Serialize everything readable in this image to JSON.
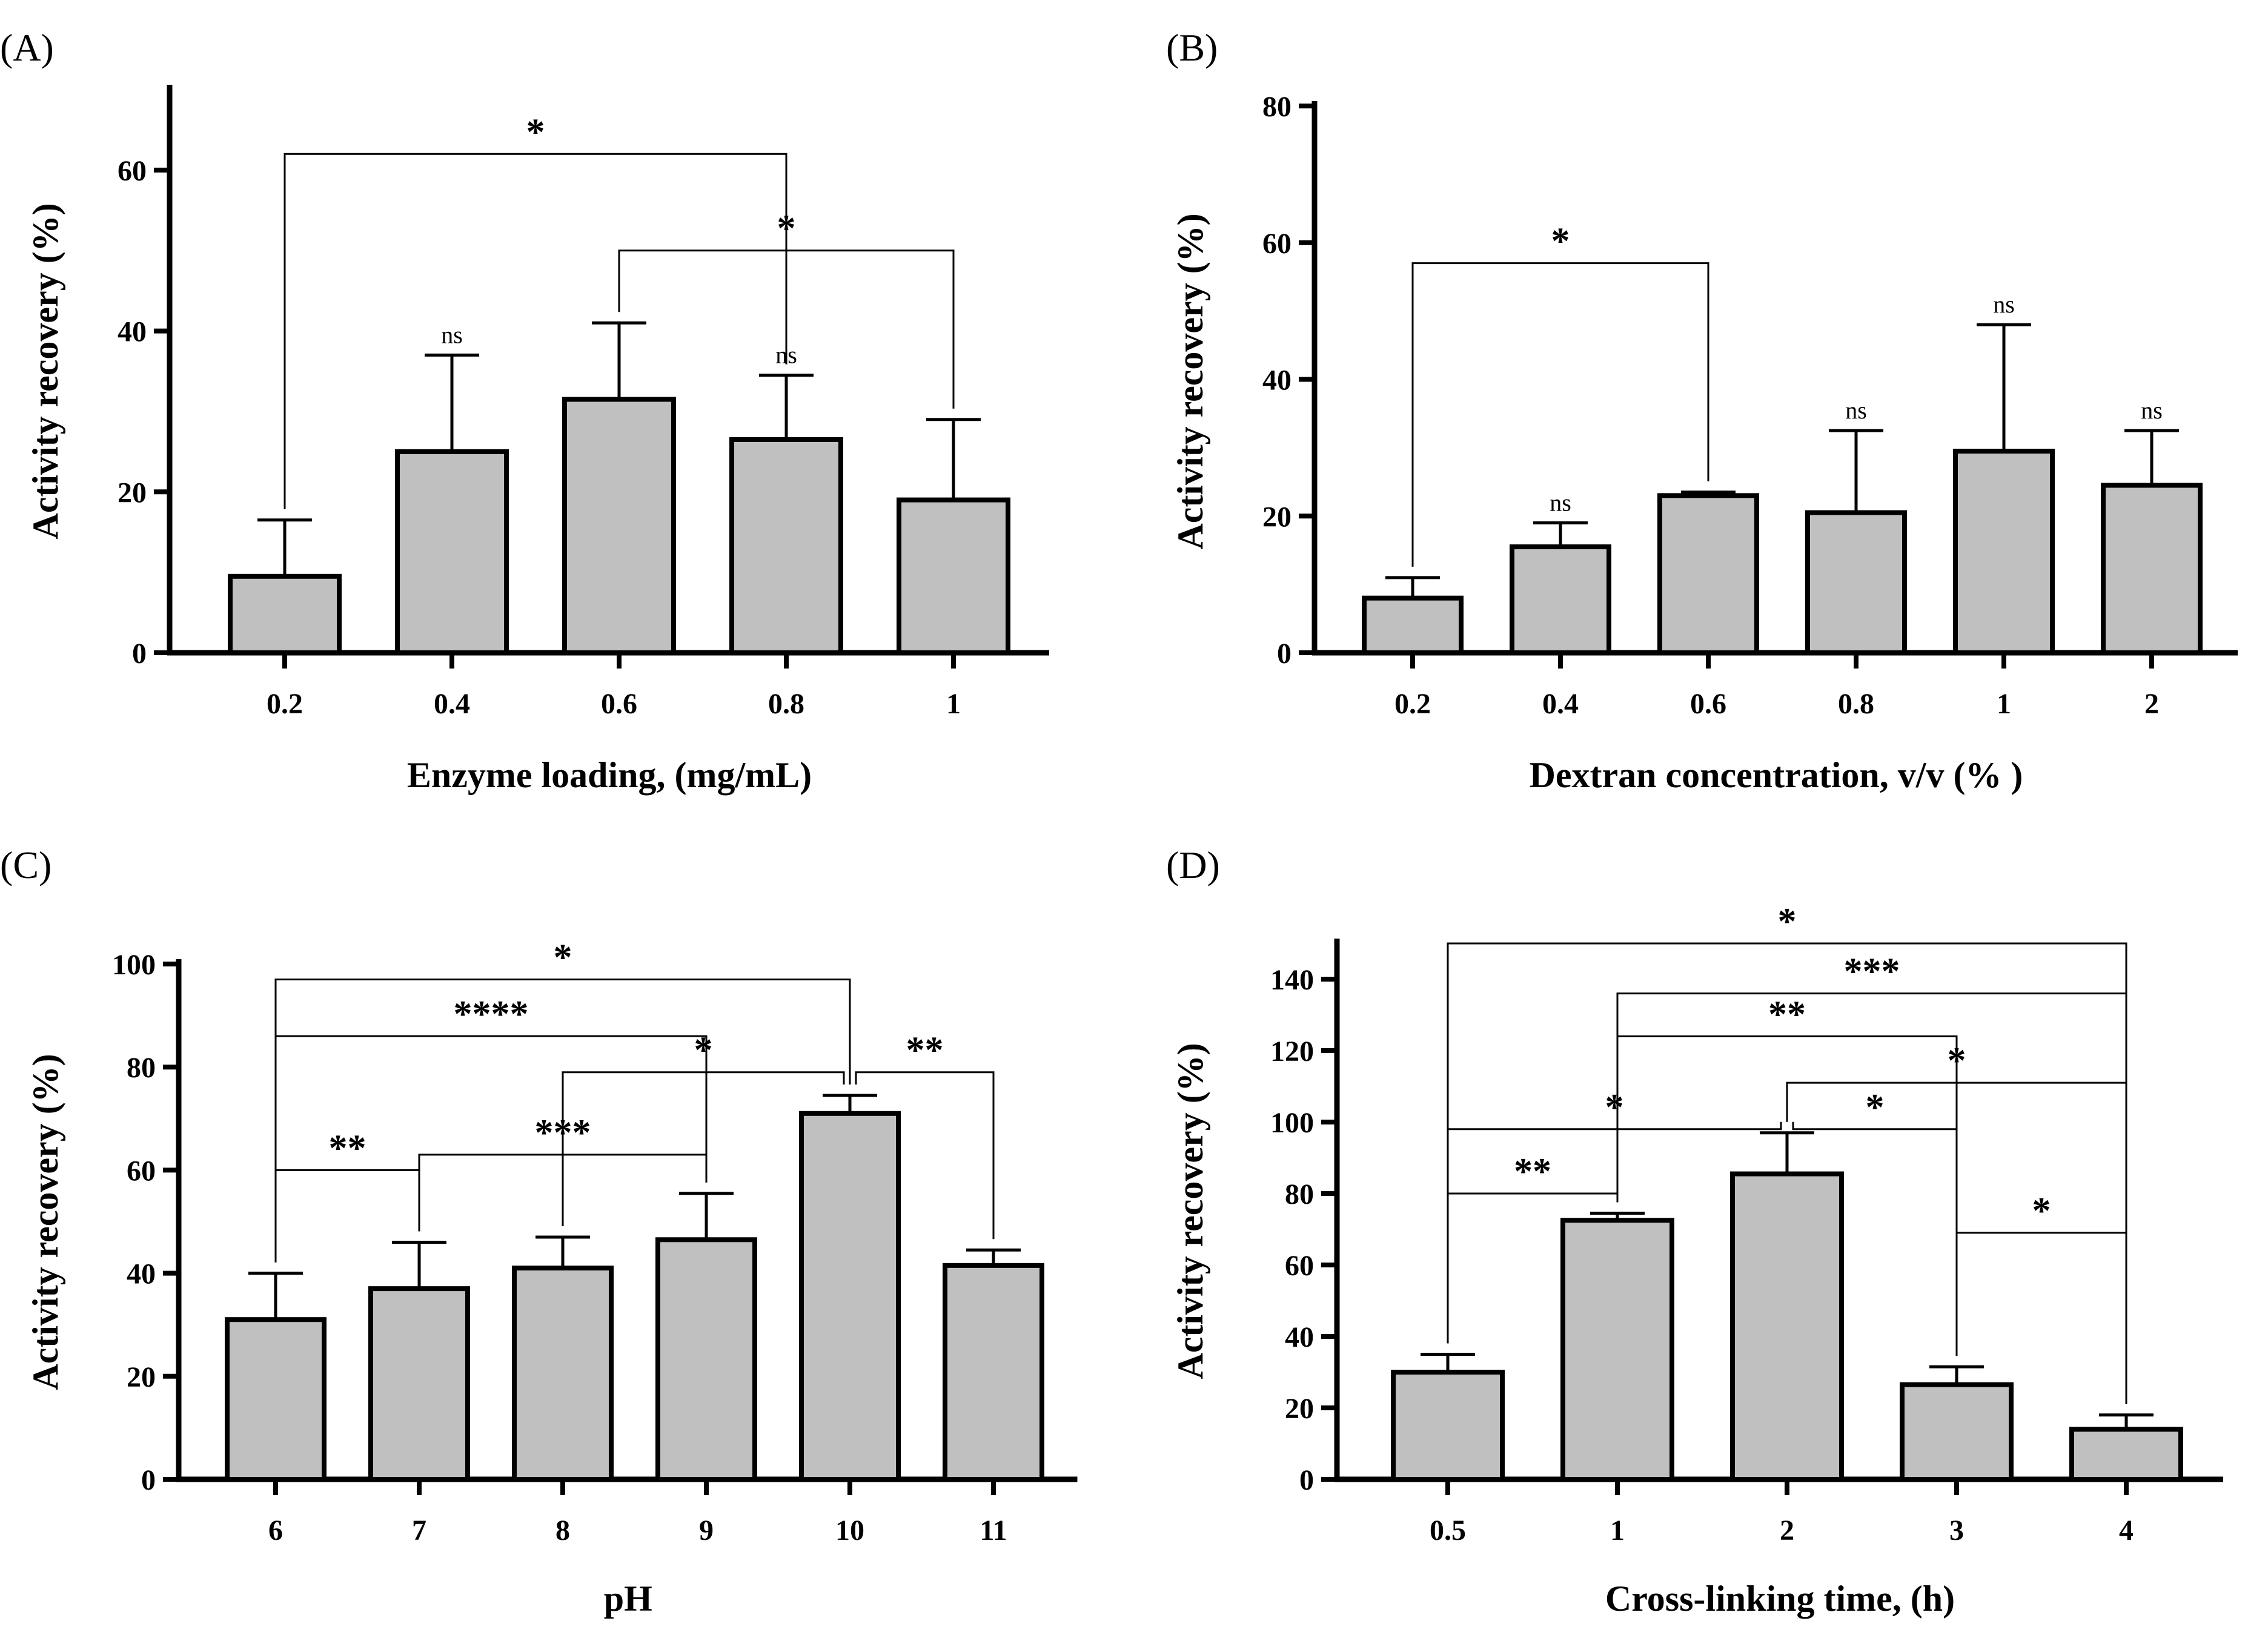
{
  "figure": {
    "background": "#ffffff",
    "bar_fill": "#c0c0c0",
    "stroke": "#000000"
  },
  "chart_data": [
    {
      "panel": "(A)",
      "type": "bar",
      "categories": [
        "0.2",
        "0.4",
        "0.6",
        "0.8",
        "1"
      ],
      "values": [
        9.5,
        25,
        31.5,
        26.5,
        19
      ],
      "errors": [
        7,
        12,
        9.5,
        8,
        10
      ],
      "xlabel": "Enzyme loading, (mg/mL)",
      "ylabel": "Activity recovery (%)",
      "ylim": [
        0,
        70
      ],
      "yticks": [
        0,
        20,
        40,
        60
      ],
      "point_labels": [
        "",
        "ns",
        "",
        "ns",
        ""
      ],
      "comparisons": [
        {
          "from": 0,
          "to": 3,
          "at": 62,
          "label": "*"
        },
        {
          "from": 2,
          "to": 4,
          "at": 50,
          "label": "*"
        }
      ]
    },
    {
      "panel": "(B)",
      "type": "bar",
      "categories": [
        "0.2",
        "0.4",
        "0.6",
        "0.8",
        "1",
        "2"
      ],
      "values": [
        8,
        15.5,
        23,
        20.5,
        29.5,
        24.5
      ],
      "errors": [
        3,
        3.5,
        0.5,
        12,
        18.5,
        8
      ],
      "xlabel": "Dextran concentration, v/v (% )",
      "ylabel": "Activity recovery (%)",
      "ylim": [
        0,
        80
      ],
      "yticks": [
        0,
        20,
        40,
        60,
        80
      ],
      "point_labels": [
        "",
        "ns",
        "",
        "ns",
        "ns",
        "ns"
      ],
      "comparisons": [
        {
          "from": 0,
          "to": 2,
          "at": 57,
          "label": "*"
        }
      ]
    },
    {
      "panel": "(C)",
      "type": "bar",
      "categories": [
        "6",
        "7",
        "8",
        "9",
        "10",
        "11"
      ],
      "values": [
        31,
        37,
        41,
        46.5,
        71,
        41.5
      ],
      "errors": [
        9,
        9,
        6,
        9,
        3.5,
        3
      ],
      "xlabel": "pH",
      "ylabel": "Activity recovery (%)",
      "ylim": [
        0,
        100
      ],
      "yticks": [
        0,
        20,
        40,
        60,
        80,
        100
      ],
      "point_labels": [
        "",
        "",
        "",
        "",
        "",
        ""
      ],
      "comparisons": [
        {
          "from": 0,
          "to": 4,
          "at": 97,
          "label": "*"
        },
        {
          "from": 0,
          "to": 3,
          "at": 86,
          "label": "****"
        },
        {
          "from": 2,
          "to": 4,
          "at": 79,
          "label": "*"
        },
        {
          "from": 4,
          "to": 5,
          "at": 79,
          "label": "**"
        },
        {
          "from": 1,
          "to": 3,
          "at": 63,
          "label": "***"
        },
        {
          "from": 0,
          "to": 1,
          "at": 60,
          "label": "**"
        }
      ]
    },
    {
      "panel": "(D)",
      "type": "bar",
      "categories": [
        "0.5",
        "1",
        "2",
        "3",
        "4"
      ],
      "values": [
        30,
        72.5,
        85.5,
        26.5,
        14
      ],
      "errors": [
        5,
        2,
        11.5,
        5,
        4
      ],
      "xlabel": "Cross-linking time, (h)",
      "ylabel": "Activity recovery (%)",
      "ylim": [
        0,
        150
      ],
      "yticks": [
        0,
        20,
        40,
        60,
        80,
        100,
        120,
        140
      ],
      "point_labels": [
        "",
        "",
        "",
        "",
        ""
      ],
      "comparisons": [
        {
          "from": 0,
          "to": 4,
          "at": 150,
          "label": "*"
        },
        {
          "from": 1,
          "to": 4,
          "at": 136,
          "label": "***"
        },
        {
          "from": 1,
          "to": 3,
          "at": 124,
          "label": "**"
        },
        {
          "from": 2,
          "to": 4,
          "at": 111,
          "label": "*"
        },
        {
          "from": 0,
          "to": 2,
          "at": 98,
          "label": "*"
        },
        {
          "from": 2,
          "to": 3,
          "at": 98,
          "label": "*"
        },
        {
          "from": 0,
          "to": 1,
          "at": 80,
          "label": "**"
        },
        {
          "from": 3,
          "to": 4,
          "at": 69,
          "label": "*"
        }
      ]
    }
  ]
}
